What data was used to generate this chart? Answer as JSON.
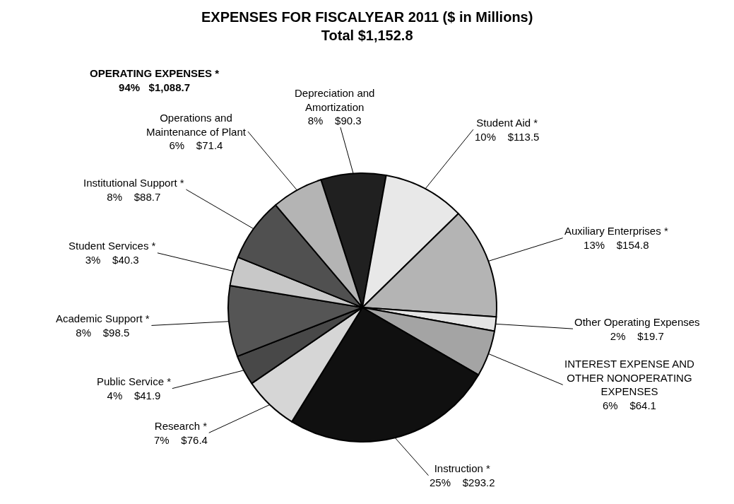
{
  "chart_data": {
    "type": "pie",
    "title": "EXPENSES FOR FISCALYEAR 2011 ($ in Millions)",
    "subtitle": "Total $1,152.8",
    "categories": [
      "Depreciation and Amortization",
      "Student Aid *",
      "Auxiliary Enterprises *",
      "Other Operating Expenses",
      "INTEREST EXPENSE AND OTHER NONOPERATING EXPENSES",
      "Instruction *",
      "Research *",
      "Public Service *",
      "Academic Support *",
      "Student Services *",
      "Institutional Support *",
      "Operations and Maintenance of Plant"
    ],
    "values": [
      90.3,
      113.5,
      154.8,
      19.7,
      64.1,
      293.2,
      76.4,
      41.9,
      98.5,
      40.3,
      88.7,
      71.4
    ],
    "value_labels": [
      "8%    $90.3",
      "10%    $113.5",
      "13%    $154.8",
      "2%    $19.7",
      "6%    $64.1",
      "25%    $293.2",
      "7%    $76.4",
      "4%    $41.9",
      "8%    $98.5",
      "3%    $40.3",
      "8%    $88.7",
      "6%    $71.4"
    ],
    "colors": [
      "#202020",
      "#e8e8e8",
      "#b4b4b4",
      "#e4e4e4",
      "#a4a4a4",
      "#101010",
      "#d6d6d6",
      "#484848",
      "#555555",
      "#c8c8c8",
      "#505050",
      "#b4b4b4"
    ],
    "annotations": [
      "OPERATING EXPENSES *\n94%   $1,088.7"
    ],
    "legend": false
  }
}
